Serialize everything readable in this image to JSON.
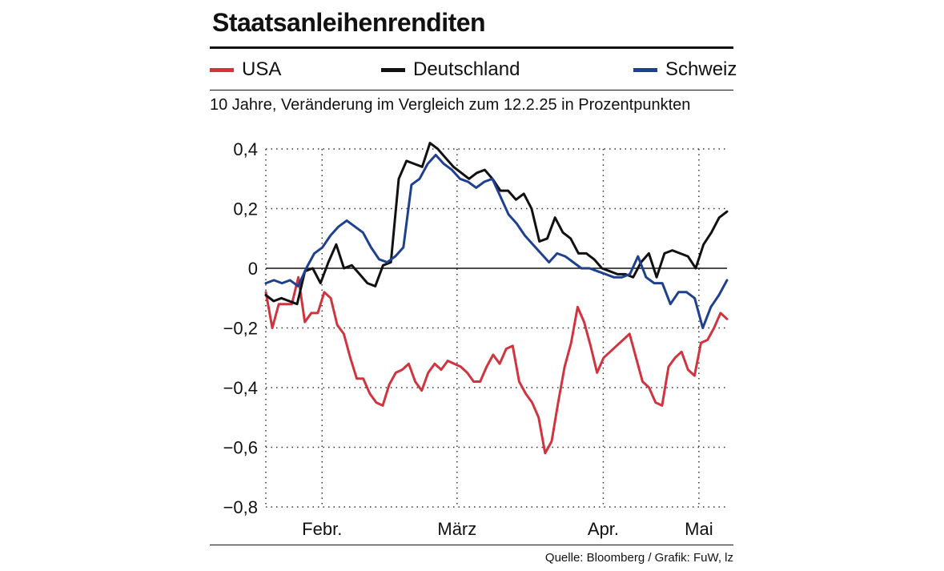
{
  "header": {
    "title": "Staatsanleihenrenditen",
    "subtitle": "10 Jahre, Veränderung im Vergleich zum 12.2.25 in Prozentpunkten"
  },
  "legend": [
    {
      "label": "USA",
      "color": "#d0343f"
    },
    {
      "label": "Deutschland",
      "color": "#111111"
    },
    {
      "label": "Schweiz",
      "color": "#1f3f8f"
    }
  ],
  "footer": {
    "source": "Quelle: Bloomberg / Grafik: FuW, lz"
  },
  "chart_data": {
    "type": "line",
    "title": "Staatsanleihenrenditen",
    "ylabel": "10 Jahre, Veränderung im Vergleich zum 12.2.25 in Prozentpunkten",
    "ylim": [
      -0.8,
      0.4
    ],
    "yticks": [
      0.4,
      0.2,
      0,
      -0.2,
      -0.4,
      -0.6,
      -0.8
    ],
    "ytick_labels": [
      "0,4",
      "0,2",
      "0",
      "−0,2",
      "−0,4",
      "−0,6",
      "−0,8"
    ],
    "xlim": [
      0,
      82
    ],
    "xticks": [
      {
        "label": "Febr.",
        "x": 10
      },
      {
        "label": "März",
        "x": 34
      },
      {
        "label": "Apr.",
        "x": 60
      },
      {
        "label": "Mai",
        "x": 77
      }
    ],
    "grid": "dotted",
    "series": [
      {
        "name": "USA",
        "color": "#d0343f",
        "values": [
          -0.08,
          -0.2,
          -0.12,
          -0.12,
          -0.12,
          -0.03,
          -0.18,
          -0.15,
          -0.15,
          -0.08,
          -0.1,
          -0.19,
          -0.22,
          -0.3,
          -0.37,
          -0.37,
          -0.42,
          -0.45,
          -0.46,
          -0.39,
          -0.35,
          -0.34,
          -0.32,
          -0.38,
          -0.41,
          -0.35,
          -0.32,
          -0.34,
          -0.31,
          -0.32,
          -0.33,
          -0.35,
          -0.38,
          -0.38,
          -0.33,
          -0.29,
          -0.32,
          -0.27,
          -0.26,
          -0.38,
          -0.42,
          -0.45,
          -0.5,
          -0.62,
          -0.58,
          -0.45,
          -0.33,
          -0.25,
          -0.13,
          -0.18,
          -0.26,
          -0.35,
          -0.3,
          -0.28,
          -0.26,
          -0.24,
          -0.22,
          -0.3,
          -0.38,
          -0.4,
          -0.45,
          -0.46,
          -0.33,
          -0.3,
          -0.28,
          -0.34,
          -0.36,
          -0.25,
          -0.24,
          -0.2,
          -0.15,
          -0.17
        ]
      },
      {
        "name": "Deutschland",
        "color": "#111111",
        "values": [
          -0.09,
          -0.11,
          -0.1,
          -0.11,
          -0.12,
          -0.01,
          0,
          -0.05,
          0.02,
          0.08,
          0.0,
          0.01,
          -0.02,
          -0.05,
          -0.06,
          0.01,
          0.02,
          0.3,
          0.36,
          0.35,
          0.34,
          0.42,
          0.4,
          0.37,
          0.34,
          0.32,
          0.3,
          0.32,
          0.33,
          0.3,
          0.26,
          0.26,
          0.23,
          0.25,
          0.2,
          0.09,
          0.1,
          0.17,
          0.12,
          0.1,
          0.05,
          0.05,
          0.03,
          0.0,
          -0.01,
          -0.02,
          -0.02,
          -0.03,
          0.02,
          0.05,
          -0.03,
          0.05,
          0.06,
          0.05,
          0.04,
          0.0,
          0.08,
          0.12,
          0.17,
          0.19
        ]
      },
      {
        "name": "Schweiz",
        "color": "#1f3f8f",
        "values": [
          -0.05,
          -0.04,
          -0.05,
          -0.04,
          -0.06,
          0.0,
          0.05,
          0.07,
          0.11,
          0.14,
          0.16,
          0.14,
          0.12,
          0.07,
          0.03,
          0.02,
          0.04,
          0.07,
          0.28,
          0.3,
          0.35,
          0.38,
          0.35,
          0.33,
          0.3,
          0.29,
          0.27,
          0.29,
          0.3,
          0.24,
          0.18,
          0.15,
          0.11,
          0.08,
          0.05,
          0.02,
          0.05,
          0.04,
          0.02,
          0.0,
          0.0,
          -0.01,
          -0.02,
          -0.03,
          -0.03,
          -0.02,
          0.04,
          -0.03,
          -0.05,
          -0.05,
          -0.12,
          -0.08,
          -0.08,
          -0.1,
          -0.2,
          -0.13,
          -0.09,
          -0.04
        ]
      }
    ]
  }
}
